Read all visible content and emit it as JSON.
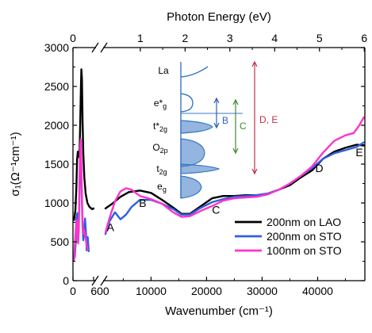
{
  "chart_data": {
    "type": "line",
    "xlabel": "Wavenumber (cm⁻¹)",
    "ylabel": "σ₁(Ω⁻¹cm⁻¹)",
    "top_xlabel": "Photon Energy (eV)",
    "x_break": [
      600,
      1800
    ],
    "xlim_left": [
      0,
      600
    ],
    "xlim_right": [
      1800,
      48500
    ],
    "ylim": [
      0,
      3000
    ],
    "bottom_ticks": [
      "0",
      "600",
      "10000",
      "20000",
      "30000",
      "40000"
    ],
    "bottom_tick_values": [
      0,
      600,
      10000,
      20000,
      30000,
      40000
    ],
    "top_ticks": [
      "0",
      "1",
      "2",
      "3",
      "4",
      "5",
      "6"
    ],
    "top_tick_values": [
      0,
      8065.5,
      16131,
      24196.5,
      32262,
      40327.5,
      48393
    ],
    "y_ticks": [
      "0",
      "500",
      "1000",
      "1500",
      "2000",
      "2500",
      "3000"
    ],
    "y_tick_values": [
      0,
      500,
      1000,
      1500,
      2000,
      2500,
      3000
    ],
    "series": [
      {
        "name": "200nm on LAO",
        "color": "#000000",
        "segments": [
          [
            [
              30,
              780
            ],
            [
              70,
              900
            ],
            [
              100,
              1200
            ],
            [
              120,
              1560
            ],
            [
              140,
              1660
            ],
            [
              160,
              1590
            ],
            [
              190,
              1620
            ],
            [
              210,
              2000
            ],
            [
              230,
              2480
            ],
            [
              245,
              2720
            ],
            [
              260,
              2600
            ],
            [
              280,
              2050
            ],
            [
              300,
              1650
            ],
            [
              330,
              1330
            ],
            [
              370,
              1120
            ],
            [
              420,
              1000
            ],
            [
              480,
              950
            ],
            [
              560,
              920
            ],
            [
              600,
              930
            ]
          ],
          [
            [
              1800,
              930
            ],
            [
              3000,
              990
            ],
            [
              4500,
              1080
            ],
            [
              6000,
              1140
            ],
            [
              8000,
              1160
            ],
            [
              10000,
              1130
            ],
            [
              12000,
              1040
            ],
            [
              14000,
              940
            ],
            [
              15500,
              860
            ],
            [
              17000,
              860
            ],
            [
              19000,
              960
            ],
            [
              21000,
              1060
            ],
            [
              23000,
              1090
            ],
            [
              25000,
              1090
            ],
            [
              27000,
              1100
            ],
            [
              29000,
              1100
            ],
            [
              31000,
              1120
            ],
            [
              33000,
              1170
            ],
            [
              35000,
              1230
            ],
            [
              37000,
              1330
            ],
            [
              39000,
              1420
            ],
            [
              41000,
              1570
            ],
            [
              43000,
              1660
            ],
            [
              45000,
              1710
            ],
            [
              47000,
              1750
            ],
            [
              48300,
              1740
            ]
          ]
        ]
      },
      {
        "name": "200nm on STO",
        "color": "#2f5fe0",
        "segments": [
          [
            [
              50,
              300
            ],
            [
              80,
              500
            ],
            [
              100,
              800
            ],
            [
              130,
              870
            ],
            [
              160,
              700
            ],
            [
              180,
              900
            ],
            [
              200,
              1450
            ],
            [
              220,
              1670
            ],
            [
              240,
              1450
            ],
            [
              260,
              1000
            ],
            [
              280,
              700
            ],
            [
              300,
              520
            ],
            [
              320,
              600
            ],
            [
              350,
              800
            ],
            [
              380,
              600
            ],
            [
              400,
              390
            ],
            [
              430,
              560
            ],
            [
              460,
              380
            ]
          ],
          [
            [
              1800,
              600
            ],
            [
              2500,
              760
            ],
            [
              3500,
              880
            ],
            [
              4500,
              790
            ],
            [
              5500,
              850
            ],
            [
              6500,
              950
            ],
            [
              8000,
              1040
            ],
            [
              10000,
              1040
            ],
            [
              12000,
              990
            ],
            [
              14000,
              920
            ],
            [
              15500,
              850
            ],
            [
              17000,
              850
            ],
            [
              19000,
              940
            ],
            [
              21000,
              1010
            ],
            [
              23000,
              1050
            ],
            [
              25000,
              1080
            ],
            [
              27000,
              1090
            ],
            [
              29000,
              1100
            ],
            [
              31000,
              1120
            ],
            [
              33000,
              1170
            ],
            [
              35000,
              1250
            ],
            [
              37000,
              1350
            ],
            [
              39000,
              1450
            ],
            [
              41000,
              1570
            ],
            [
              43000,
              1640
            ],
            [
              45000,
              1680
            ],
            [
              47000,
              1720
            ],
            [
              48300,
              1780
            ]
          ]
        ]
      },
      {
        "name": "100nm on STO",
        "color": "#ff33cc",
        "segments": [
          [
            [
              30,
              260
            ],
            [
              60,
              500
            ],
            [
              90,
              700
            ],
            [
              110,
              780
            ],
            [
              130,
              600
            ],
            [
              150,
              480
            ],
            [
              170,
              650
            ],
            [
              190,
              1300
            ],
            [
              210,
              1720
            ],
            [
              225,
              1820
            ],
            [
              240,
              1600
            ],
            [
              260,
              1100
            ],
            [
              280,
              750
            ],
            [
              300,
              600
            ],
            [
              330,
              650
            ],
            [
              360,
              580
            ],
            [
              400,
              450
            ],
            [
              430,
              400
            ]
          ],
          [
            [
              1800,
              620
            ],
            [
              2500,
              800
            ],
            [
              3500,
              1020
            ],
            [
              4500,
              1150
            ],
            [
              5500,
              1190
            ],
            [
              6500,
              1170
            ],
            [
              8000,
              1090
            ],
            [
              10000,
              1050
            ],
            [
              12000,
              990
            ],
            [
              14000,
              880
            ],
            [
              15500,
              820
            ],
            [
              17000,
              830
            ],
            [
              19000,
              900
            ],
            [
              21000,
              960
            ],
            [
              23000,
              1030
            ],
            [
              25000,
              1060
            ],
            [
              27000,
              1070
            ],
            [
              29000,
              1080
            ],
            [
              31000,
              1110
            ],
            [
              33000,
              1170
            ],
            [
              35000,
              1250
            ],
            [
              37000,
              1350
            ],
            [
              39000,
              1470
            ],
            [
              41000,
              1650
            ],
            [
              43000,
              1800
            ],
            [
              45000,
              1870
            ],
            [
              46500,
              1900
            ],
            [
              47500,
              2000
            ],
            [
              48300,
              2100
            ]
          ]
        ]
      }
    ],
    "annotations": [
      {
        "text": "A",
        "x": 2700,
        "y": 640
      },
      {
        "text": "B",
        "x": 8500,
        "y": 950
      },
      {
        "text": "C",
        "x": 21700,
        "y": 860
      },
      {
        "text": "D",
        "x": 40300,
        "y": 1400
      },
      {
        "text": "E",
        "x": 47500,
        "y": 1600
      }
    ],
    "legend": {
      "placement": "bottom-right",
      "entries": [
        "200nm on LAO",
        "200nm on STO",
        "100nm on STO"
      ]
    },
    "inset": {
      "levels": [
        "La",
        "e*",
        "t*",
        "O",
        "t",
        "e"
      ],
      "level_subs": [
        "",
        "g",
        "2g",
        "2p",
        "2g",
        "g"
      ],
      "arrow_labels": [
        "B",
        "C",
        "D, E"
      ]
    }
  }
}
